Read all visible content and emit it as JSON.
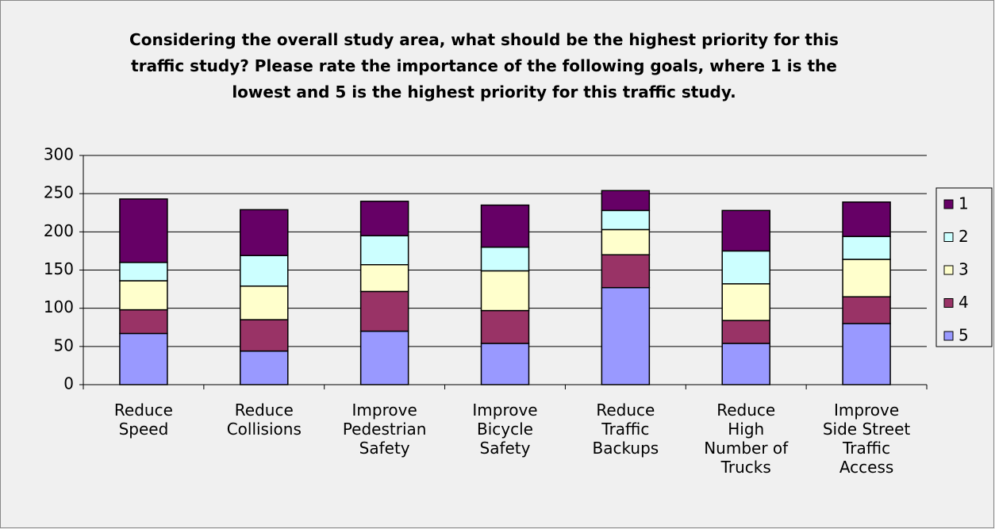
{
  "chart_data": {
    "type": "stacked_bar",
    "title": "Considering the overall study area, what should be the highest priority for this\ntraffic study? Please rate the importance of the following goals, where 1 is the\nlowest and 5 is the highest priority for this traffic study.",
    "categories": [
      "Reduce\nSpeed",
      "Reduce\nCollisions",
      "Improve\nPedestrian\nSafety",
      "Improve\nBicycle\nSafety",
      "Reduce\nTraffic\nBackups",
      "Reduce\nHigh\nNumber of\nTrucks",
      "Improve\nSide Street\nTraffic\nAccess"
    ],
    "series": [
      {
        "name": "5",
        "color": "#9999ff",
        "values": [
          67,
          44,
          70,
          54,
          127,
          54,
          80
        ]
      },
      {
        "name": "4",
        "color": "#993366",
        "values": [
          31,
          41,
          52,
          43,
          43,
          30,
          35
        ]
      },
      {
        "name": "3",
        "color": "#ffffcc",
        "values": [
          38,
          44,
          35,
          52,
          33,
          48,
          49
        ]
      },
      {
        "name": "2",
        "color": "#ccffff",
        "values": [
          24,
          40,
          38,
          31,
          25,
          43,
          30
        ]
      },
      {
        "name": "1",
        "color": "#660066",
        "values": [
          83,
          60,
          45,
          55,
          26,
          53,
          45
        ]
      }
    ],
    "ylim": [
      0,
      300
    ],
    "yticks": [
      0,
      50,
      100,
      150,
      200,
      250,
      300
    ],
    "grid": true,
    "legend": "right"
  }
}
